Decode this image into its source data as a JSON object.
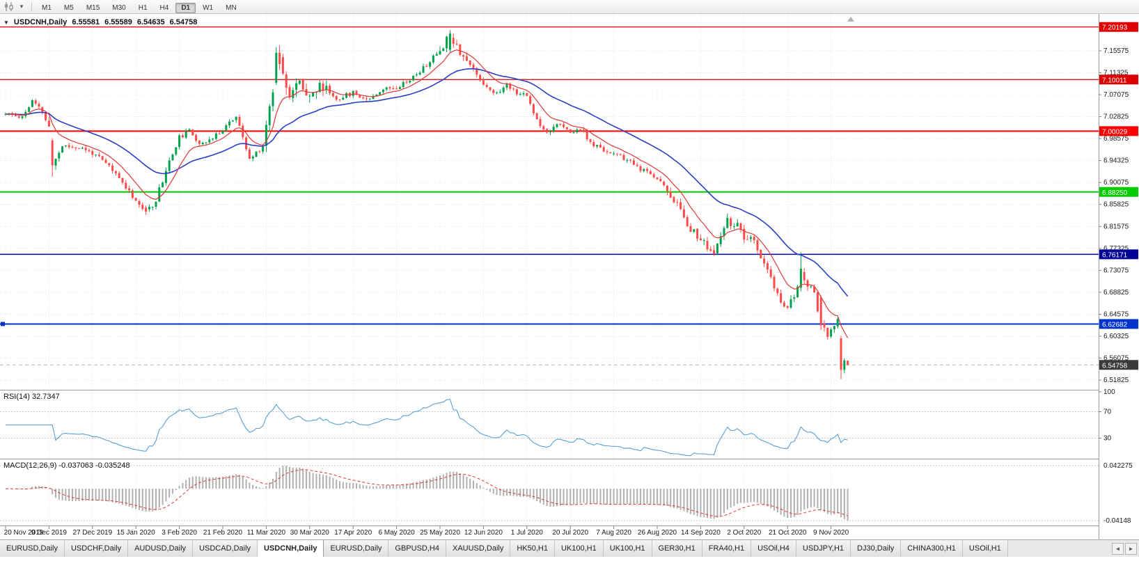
{
  "toolbar": {
    "caret_glyph": "▾",
    "timeframes": [
      {
        "label": "M1",
        "active": false
      },
      {
        "label": "M5",
        "active": false
      },
      {
        "label": "M15",
        "active": false
      },
      {
        "label": "M30",
        "active": false
      },
      {
        "label": "H1",
        "active": false
      },
      {
        "label": "H4",
        "active": false
      },
      {
        "label": "D1",
        "active": true
      },
      {
        "label": "W1",
        "active": false
      },
      {
        "label": "MN",
        "active": false
      }
    ]
  },
  "chart": {
    "title_marker": "▼",
    "symbol_title": "USDCNH,Daily",
    "ohlc": {
      "open": "6.55581",
      "high": "6.55589",
      "low": "6.54635",
      "close": "6.54758"
    },
    "price_axis": {
      "ticks": [
        "7.15575",
        "7.11325",
        "7.07075",
        "7.02825",
        "6.98575",
        "6.94325",
        "6.90075",
        "6.85825",
        "6.81575",
        "6.77325",
        "6.73075",
        "6.68825",
        "6.64575",
        "6.60325",
        "6.56075",
        "6.51825"
      ]
    },
    "hlines": [
      {
        "label": "7.20193",
        "price": 7.20193,
        "color": "#dd0000",
        "width": 1.2
      },
      {
        "label": "7.10011",
        "price": 7.10011,
        "color": "#dd0000",
        "width": 1.2
      },
      {
        "label": "7.00029",
        "price": 7.00029,
        "color": "#ff0000",
        "width": 2
      },
      {
        "label": "6.88250",
        "price": 6.8825,
        "color": "#00cc00",
        "width": 2
      },
      {
        "label": "6.76171",
        "price": 6.76171,
        "color": "#000096",
        "width": 1.5
      },
      {
        "label": "6.62682",
        "price": 6.62682,
        "color": "#0033cc",
        "width": 2,
        "handle": true
      }
    ],
    "current_price": {
      "label": "6.54758",
      "price": 6.54758,
      "badge_color": "#3a3a3a"
    }
  },
  "rsi": {
    "name": "RSI(14)",
    "value": "32.7347",
    "levels": [
      100,
      70,
      30
    ],
    "line_color": "#569fd6"
  },
  "macd": {
    "name": "MACD(12,26,9)",
    "values": "-0.037063 -0.035248",
    "scale_max_label": "0.042275",
    "scale_min_label": "-0.04148",
    "histogram_color": "#b0b0b0",
    "signal_color": "#e23535"
  },
  "time_axis": {
    "indices": [
      0,
      13,
      26,
      39,
      52,
      65,
      78,
      91,
      104,
      117,
      130,
      143,
      156,
      169,
      182,
      195,
      208,
      221,
      234,
      247
    ],
    "labels": [
      "20 Nov 2019",
      "9 Dec 2019",
      "27 Dec 2019",
      "15 Jan 2020",
      "3 Feb 2020",
      "21 Feb 2020",
      "11 Mar 2020",
      "30 Mar 2020",
      "17 Apr 2020",
      "6 May 2020",
      "25 May 2020",
      "12 Jun 2020",
      "1 Jul 2020",
      "20 Jul 2020",
      "7 Aug 2020",
      "26 Aug 2020",
      "14 Sep 2020",
      "2 Oct 2020",
      "21 Oct 2020",
      "9 Nov 2020"
    ]
  },
  "tabbar": {
    "left_arrow": "◄",
    "right_arrow": "►",
    "tabs": [
      {
        "label": "EURUSD,Daily",
        "active": false
      },
      {
        "label": "USDCHF,Daily",
        "active": false
      },
      {
        "label": "AUDUSD,Daily",
        "active": false
      },
      {
        "label": "USDCAD,Daily",
        "active": false
      },
      {
        "label": "USDCNH,Daily",
        "active": true
      },
      {
        "label": "EURUSD,Daily",
        "active": false
      },
      {
        "label": "GBPUSD,H4",
        "active": false
      },
      {
        "label": "XAUUSD,Daily",
        "active": false
      },
      {
        "label": "HK50,H1",
        "active": false
      },
      {
        "label": "UK100,H1",
        "active": false
      },
      {
        "label": "UK100,H1",
        "active": false
      },
      {
        "label": "GER30,H1",
        "active": false
      },
      {
        "label": "FRA40,H1",
        "active": false
      },
      {
        "label": "USOil,H4",
        "active": false
      },
      {
        "label": "USDJPY,H1",
        "active": false
      },
      {
        "label": "DJ30,Daily",
        "active": false
      },
      {
        "label": "CHINA300,H1",
        "active": false
      },
      {
        "label": "USOil,H1",
        "active": false
      }
    ]
  },
  "chart_data": {
    "type": "candlestick",
    "symbol": "USDCNH",
    "period": "Daily",
    "candle_count": 253,
    "seed": 11,
    "up_color": "#00a24b",
    "down_color": "#ff4a4a",
    "base_volatility": 0.011,
    "volatility_zones": [
      {
        "from": 13,
        "to": 16,
        "vol": 0.022
      },
      {
        "from": 40,
        "to": 50,
        "vol": 0.016
      },
      {
        "from": 78,
        "to": 96,
        "vol": 0.03
      },
      {
        "from": 130,
        "to": 140,
        "vol": 0.02
      },
      {
        "from": 196,
        "to": 252,
        "vol": 0.018
      }
    ],
    "price_anchors": [
      [
        0,
        7.033
      ],
      [
        5,
        7.028
      ],
      [
        8,
        7.058
      ],
      [
        11,
        7.038
      ],
      [
        13,
        7.005
      ],
      [
        14,
        6.935
      ],
      [
        17,
        6.972
      ],
      [
        22,
        6.968
      ],
      [
        26,
        6.958
      ],
      [
        31,
        6.932
      ],
      [
        36,
        6.893
      ],
      [
        39,
        6.866
      ],
      [
        42,
        6.843
      ],
      [
        45,
        6.868
      ],
      [
        48,
        6.925
      ],
      [
        52,
        6.988
      ],
      [
        55,
        7.0
      ],
      [
        58,
        6.978
      ],
      [
        62,
        6.985
      ],
      [
        66,
        7.012
      ],
      [
        69,
        7.028
      ],
      [
        73,
        6.945
      ],
      [
        77,
        6.972
      ],
      [
        80,
        7.085
      ],
      [
        82,
        7.148
      ],
      [
        85,
        7.068
      ],
      [
        88,
        7.095
      ],
      [
        91,
        7.072
      ],
      [
        95,
        7.088
      ],
      [
        99,
        7.062
      ],
      [
        104,
        7.075
      ],
      [
        108,
        7.062
      ],
      [
        113,
        7.082
      ],
      [
        117,
        7.086
      ],
      [
        122,
        7.105
      ],
      [
        126,
        7.128
      ],
      [
        130,
        7.158
      ],
      [
        133,
        7.188
      ],
      [
        136,
        7.155
      ],
      [
        139,
        7.128
      ],
      [
        143,
        7.092
      ],
      [
        147,
        7.072
      ],
      [
        150,
        7.09
      ],
      [
        153,
        7.076
      ],
      [
        156,
        7.068
      ],
      [
        159,
        7.022
      ],
      [
        162,
        6.998
      ],
      [
        165,
        7.016
      ],
      [
        169,
        6.996
      ],
      [
        172,
        7.006
      ],
      [
        175,
        6.976
      ],
      [
        179,
        6.964
      ],
      [
        182,
        6.956
      ],
      [
        186,
        6.944
      ],
      [
        190,
        6.926
      ],
      [
        195,
        6.91
      ],
      [
        200,
        6.868
      ],
      [
        205,
        6.812
      ],
      [
        209,
        6.782
      ],
      [
        212,
        6.762
      ],
      [
        216,
        6.826
      ],
      [
        219,
        6.816
      ],
      [
        221,
        6.792
      ],
      [
        224,
        6.786
      ],
      [
        227,
        6.744
      ],
      [
        230,
        6.696
      ],
      [
        233,
        6.656
      ],
      [
        236,
        6.678
      ],
      [
        238,
        6.728
      ],
      [
        240,
        6.702
      ],
      [
        242,
        6.688
      ],
      [
        244,
        6.626
      ],
      [
        246,
        6.602
      ],
      [
        247,
        6.616
      ],
      [
        249,
        6.63
      ],
      [
        250,
        6.598
      ],
      [
        251,
        6.556
      ],
      [
        252,
        6.5476
      ]
    ],
    "candle_overrides": {
      "14": {
        "o": 6.982,
        "h": 6.986,
        "l": 6.912,
        "c": 6.934
      },
      "42": {
        "o": 6.852,
        "h": 6.856,
        "l": 6.838,
        "c": 6.8445
      },
      "81": {
        "o": 7.094,
        "h": 7.163,
        "l": 7.09,
        "c": 7.152
      },
      "82": {
        "o": 7.152,
        "h": 7.166,
        "l": 7.118,
        "c": 7.13
      },
      "133": {
        "o": 7.158,
        "h": 7.196,
        "l": 7.152,
        "c": 7.189
      },
      "238": {
        "o": 6.697,
        "h": 6.7655,
        "l": 6.69,
        "c": 6.734
      },
      "244": {
        "o": 6.678,
        "h": 6.682,
        "l": 6.615,
        "c": 6.624
      },
      "250": {
        "o": 6.599,
        "h": 6.604,
        "l": 6.52,
        "c": 6.538
      },
      "251": {
        "o": 6.538,
        "h": 6.56,
        "l": 6.531,
        "c": 6.5562
      },
      "252": {
        "o": 6.55581,
        "h": 6.55589,
        "l": 6.54635,
        "c": 6.54758
      }
    },
    "indicators": {
      "ma_fast": {
        "type": "ema",
        "period": 10,
        "color": "#e23535"
      },
      "ma_slow": {
        "type": "ema",
        "period": 34,
        "color": "#2b3fc4"
      },
      "rsi": {
        "period": 14,
        "last_value": 32.7347
      },
      "macd": {
        "fast": 12,
        "slow": 26,
        "signal": 9,
        "last_main": -0.037063,
        "last_signal": -0.035248
      }
    }
  }
}
